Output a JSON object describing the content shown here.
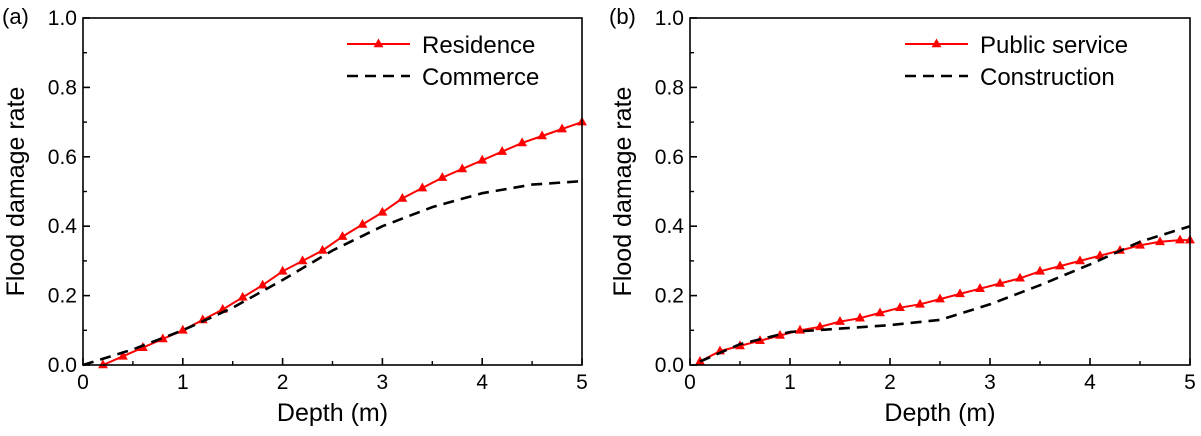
{
  "chart_data": [
    {
      "panel_label": "(a)",
      "type": "line",
      "xlabel": "Depth (m)",
      "ylabel": "Flood damage rate",
      "xlim": [
        0,
        5
      ],
      "ylim": [
        0,
        1.0
      ],
      "xticks": [
        "0",
        "1",
        "2",
        "3",
        "4",
        "5"
      ],
      "yticks": [
        "0.0",
        "0.2",
        "0.4",
        "0.6",
        "0.8",
        "1.0"
      ],
      "grid": false,
      "legend_position": "top-right",
      "series": [
        {
          "name": "Residence",
          "style": "solid-triangle",
          "color": "#ff0000",
          "x": [
            0.2,
            0.4,
            0.6,
            0.8,
            1.0,
            1.2,
            1.4,
            1.6,
            1.8,
            2.0,
            2.2,
            2.4,
            2.6,
            2.8,
            3.0,
            3.2,
            3.4,
            3.6,
            3.8,
            4.0,
            4.2,
            4.4,
            4.6,
            4.8,
            5.0
          ],
          "y": [
            0.0,
            0.025,
            0.05,
            0.075,
            0.1,
            0.13,
            0.16,
            0.195,
            0.23,
            0.27,
            0.3,
            0.33,
            0.37,
            0.405,
            0.44,
            0.48,
            0.51,
            0.54,
            0.565,
            0.59,
            0.615,
            0.64,
            0.66,
            0.68,
            0.7
          ]
        },
        {
          "name": "Commerce",
          "style": "dashed",
          "color": "#000000",
          "x": [
            0.0,
            0.5,
            1.0,
            1.5,
            2.0,
            2.5,
            3.0,
            3.5,
            4.0,
            4.5,
            5.0
          ],
          "y": [
            0.0,
            0.045,
            0.1,
            0.165,
            0.245,
            0.33,
            0.4,
            0.455,
            0.495,
            0.52,
            0.53
          ]
        }
      ]
    },
    {
      "panel_label": "(b)",
      "type": "line",
      "xlabel": "Depth (m)",
      "ylabel": "Flood damage rate",
      "xlim": [
        0,
        5
      ],
      "ylim": [
        0,
        1.0
      ],
      "xticks": [
        "0",
        "1",
        "2",
        "3",
        "4",
        "5"
      ],
      "yticks": [
        "0.0",
        "0.2",
        "0.4",
        "0.6",
        "0.8",
        "1.0"
      ],
      "grid": false,
      "legend_position": "top-right",
      "series": [
        {
          "name": "Public service",
          "style": "solid-triangle",
          "color": "#ff0000",
          "x": [
            0.1,
            0.3,
            0.5,
            0.7,
            0.9,
            1.1,
            1.3,
            1.5,
            1.7,
            1.9,
            2.1,
            2.3,
            2.5,
            2.7,
            2.9,
            3.1,
            3.3,
            3.5,
            3.7,
            3.9,
            4.1,
            4.3,
            4.5,
            4.7,
            4.9,
            5.0
          ],
          "y": [
            0.01,
            0.04,
            0.055,
            0.07,
            0.085,
            0.1,
            0.11,
            0.125,
            0.135,
            0.15,
            0.165,
            0.175,
            0.19,
            0.205,
            0.22,
            0.235,
            0.25,
            0.27,
            0.285,
            0.3,
            0.315,
            0.33,
            0.345,
            0.355,
            0.36,
            0.36
          ]
        },
        {
          "name": "Construction",
          "style": "dashed",
          "color": "#000000",
          "x": [
            0.1,
            0.5,
            1.0,
            1.5,
            2.0,
            2.5,
            3.0,
            3.5,
            4.0,
            4.5,
            5.0
          ],
          "y": [
            0.01,
            0.06,
            0.095,
            0.105,
            0.115,
            0.13,
            0.175,
            0.23,
            0.29,
            0.355,
            0.4
          ]
        }
      ]
    }
  ]
}
